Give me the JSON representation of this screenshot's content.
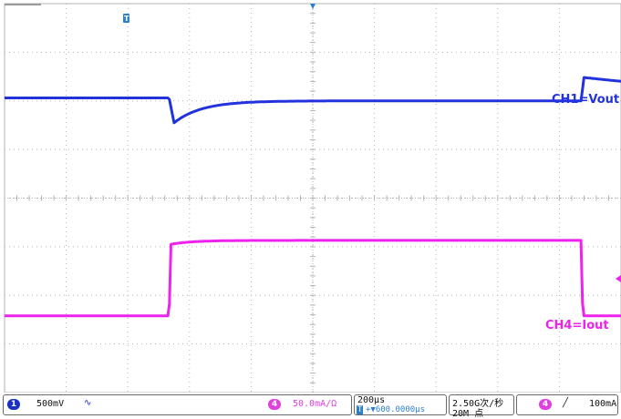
{
  "chart_data": {
    "type": "line",
    "x": [
      0,
      0.5,
      1,
      1.5,
      2,
      2.5,
      3,
      3.5,
      4,
      4.5,
      5,
      5.5,
      6,
      6.5,
      7,
      7.5,
      8,
      8.5,
      9,
      9.5,
      10
    ],
    "xlim": [
      0,
      10
    ],
    "ylim": [
      -4,
      4
    ],
    "grid": true,
    "series": [
      {
        "name": "CH1=Vout",
        "color": "#2233dd",
        "values": [
          2.06,
          2.06,
          2.06,
          1.93,
          1.55,
          1.96,
          2.0,
          2.0,
          2.0,
          2.0,
          2.0,
          2.0,
          2.0,
          2.0,
          2.48,
          2.41,
          2.33,
          2.24,
          2.13,
          2.13,
          2.13
        ]
      },
      {
        "name": "CH4=Iout",
        "color": "#ee22ee",
        "values": [
          -2.42,
          -2.42,
          -2.42,
          -0.95,
          -0.91,
          -0.87,
          -0.87,
          -0.87,
          -0.87,
          -0.87,
          -0.87,
          -0.87,
          -0.87,
          -0.87,
          -2.42,
          -2.42,
          -2.42,
          -2.42,
          -2.42,
          -2.42,
          -2.42
        ]
      }
    ]
  },
  "statusbar": {
    "ch1_number": "1",
    "ch1_scale": "500mV",
    "ch1_coupling": "∿",
    "ch4_number": "4",
    "ch4_scale": "50.0mA/Ω",
    "timebase": "200μs",
    "trigger_pos_icon": "T",
    "trigger_offset": "+▼600.0000μs",
    "sample_rate": "2.50G次/秒",
    "record_length": "20M 点",
    "trigger_source_number": "4",
    "trigger_slope": "╱",
    "trigger_level": "100mA"
  },
  "colors": {
    "ch1": "#2233dd",
    "ch4": "#ee22ee",
    "grid": "#b4b4b4",
    "ch1_badge": "#1a2fc4",
    "ch4_badge": "#e040e0",
    "trigger_marker": "#2a7fd0"
  },
  "markers": {
    "trigger_marker_label": "T"
  }
}
